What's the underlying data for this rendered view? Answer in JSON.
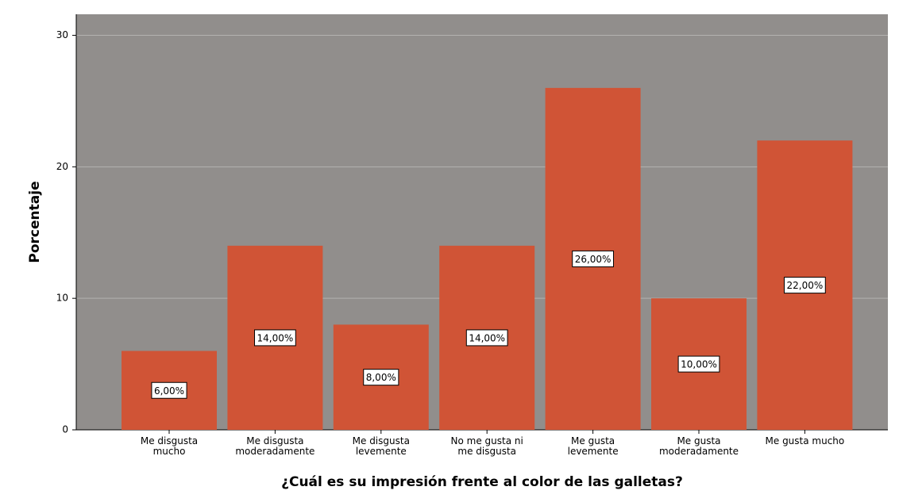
{
  "chart_data": {
    "type": "bar",
    "x_label": "¿Cuál es su impresión frente al color de las galletas?",
    "y_label": "Porcentaje",
    "categories": [
      "Me disgusta mucho",
      "Me disgusta moderadamente",
      "Me disgusta levemente",
      "No me gusta ni me disgusta",
      "Me gusta levemente",
      "Me gusta moderadamente",
      "Me gusta mucho"
    ],
    "values": [
      6,
      14,
      8,
      14,
      26,
      10,
      22
    ],
    "value_labels": [
      "6,00%",
      "14,00%",
      "8,00%",
      "14,00%",
      "26,00%",
      "10,00%",
      "22,00%"
    ],
    "color": "#d05436",
    "ylim": [
      0,
      31.6
    ],
    "yticks": [
      0,
      10,
      20,
      30
    ],
    "grid": true
  }
}
